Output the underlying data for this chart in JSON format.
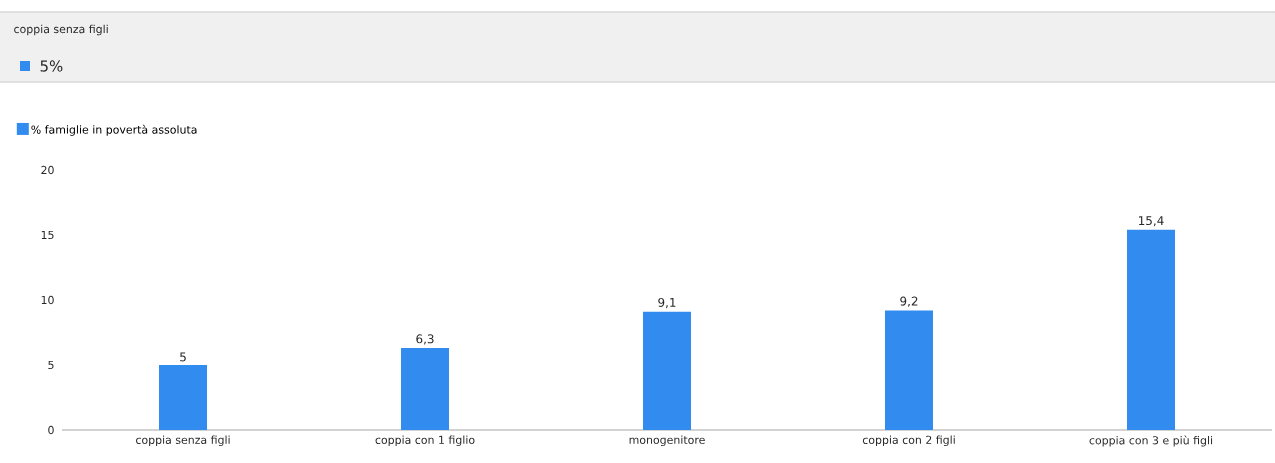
{
  "chart_data": {
    "type": "bar",
    "categories": [
      "coppia senza figli",
      "coppia con 1 figlio",
      "monogenitore",
      "coppia con 2 figli",
      "coppia con 3 e più figli"
    ],
    "series": [
      {
        "name": "% famiglie in povertà assoluta",
        "color": "#328cf0",
        "values": [
          5,
          6.3,
          9.1,
          9.2,
          15.4
        ],
        "value_labels": [
          "5",
          "6,3",
          "9,1",
          "9,2",
          "15,4"
        ]
      }
    ],
    "ylim": [
      0,
      20
    ],
    "yticks": [
      0,
      5,
      10,
      15,
      20
    ],
    "legend": "top left",
    "annotations": [
      "coppia senza figli",
      "5%"
    ]
  }
}
